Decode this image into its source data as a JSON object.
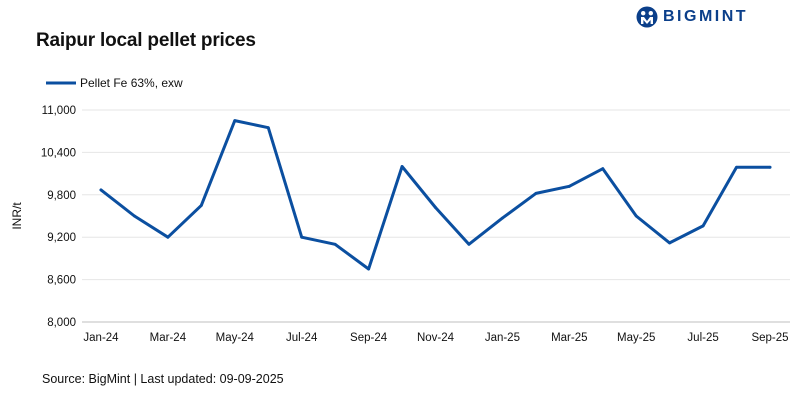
{
  "brand": {
    "name": "BIGMINT",
    "logo_color": "#0b3f8a",
    "icon": "bigmint-logo-icon"
  },
  "source": "Source: BigMint | Last updated: 09-09-2025",
  "chart_data": {
    "type": "line",
    "title": "Raipur local pellet prices",
    "xlabel": "",
    "ylabel": "INR/t",
    "ylim": [
      8000,
      11000
    ],
    "yticks": [
      "8,000",
      "8,600",
      "9,200",
      "9,800",
      "10,400",
      "11,000"
    ],
    "ytick_values": [
      8000,
      8600,
      9200,
      9800,
      10400,
      11000
    ],
    "grid": true,
    "legend_position": "top-left",
    "x": [
      "Jan-24",
      "Feb-24",
      "Mar-24",
      "Apr-24",
      "May-24",
      "Jun-24",
      "Jul-24",
      "Aug-24",
      "Sep-24",
      "Oct-24",
      "Nov-24",
      "Dec-24",
      "Jan-25",
      "Feb-25",
      "Mar-25",
      "Apr-25",
      "May-25",
      "Jun-25",
      "Jul-25",
      "Aug-25",
      "Sep-25"
    ],
    "xtick_labels": [
      "Jan-24",
      "",
      "Mar-24",
      "",
      "May-24",
      "",
      "Jul-24",
      "",
      "Sep-24",
      "",
      "Nov-24",
      "",
      "Jan-25",
      "",
      "Mar-25",
      "",
      "May-25",
      "",
      "Jul-25",
      "",
      "Sep-25"
    ],
    "series": [
      {
        "name": "Pellet Fe 63%, exw",
        "color": "#0b4fa0",
        "values": [
          9870,
          9500,
          9200,
          9650,
          10850,
          10750,
          9200,
          9100,
          8750,
          10200,
          9620,
          9100,
          9470,
          9820,
          9920,
          10170,
          9500,
          9120,
          9360,
          10190,
          10190
        ]
      }
    ]
  }
}
